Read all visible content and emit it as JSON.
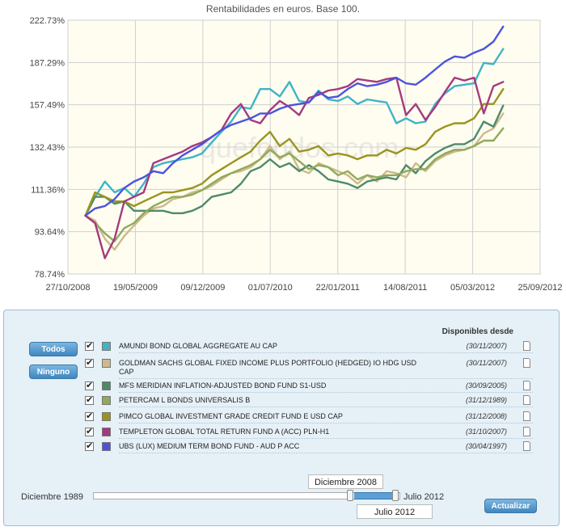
{
  "chart_data": {
    "type": "line",
    "title": "Rentabilidades en euros. Base 100.",
    "watermark": "quefondos.com",
    "y_ticks": [
      "222.73%",
      "187.29%",
      "157.49%",
      "132.43%",
      "111.36%",
      "93.64%",
      "78.74%"
    ],
    "x_ticks": [
      "27/10/2008",
      "19/05/2009",
      "09/12/2009",
      "01/07/2010",
      "22/01/2011",
      "14/08/2011",
      "05/03/2012",
      "25/09/2012"
    ],
    "yscale": "log",
    "ylim": [
      78.74,
      222.73
    ],
    "x_months": [
      0,
      1,
      2,
      3,
      4,
      5,
      6,
      7,
      8,
      9,
      10,
      11,
      12,
      13,
      14,
      15,
      16,
      17,
      18,
      19,
      20,
      21,
      22,
      23,
      24,
      25,
      26,
      27,
      28,
      29,
      30,
      31,
      32,
      33,
      34,
      35,
      36,
      37,
      38,
      39,
      40,
      41,
      42,
      43
    ],
    "xlim_months": [
      -1.8,
      46.8
    ],
    "series": [
      {
        "name": "AMUNDI BOND GLOBAL AGGREGATE AU CAP",
        "color": "#3fb3c7",
        "values": [
          100,
          108,
          115,
          110,
          112,
          108,
          114,
          122,
          124,
          125,
          126,
          127,
          129,
          135,
          141,
          147,
          156,
          155,
          168,
          168,
          163,
          173,
          160,
          159,
          167,
          161,
          160,
          163,
          158,
          161,
          160,
          159,
          146,
          149,
          146,
          147,
          158,
          165,
          170,
          171,
          172,
          187,
          186,
          198
        ]
      },
      {
        "name": "GOLDMAN SACHS GLOBAL FIXED INCOME PLUS PORTFOLIO (HEDGED) IO HDG USD CAP",
        "color": "#cdb98d",
        "values": [
          100,
          98,
          91,
          87,
          92,
          96,
          100,
          103,
          104,
          107,
          108,
          110,
          111,
          113,
          116,
          119,
          120,
          122,
          126,
          133,
          126,
          130,
          121,
          119,
          124,
          122,
          120,
          118,
          114,
          118,
          115,
          120,
          119,
          117,
          124,
          120,
          125,
          128,
          130,
          131,
          133,
          140,
          143,
          152
        ]
      },
      {
        "name": "MFS MERIDIAN INFLATION-ADJUSTED BOND FUND S1-USD",
        "color": "#4e8a6a",
        "values": [
          100,
          108,
          108,
          105,
          106,
          102,
          102,
          102,
          102,
          101,
          101,
          102,
          104,
          108,
          109,
          110,
          114,
          120,
          122,
          126,
          122,
          124,
          120,
          123,
          120,
          116,
          115,
          114,
          112,
          115,
          116,
          117,
          116,
          123,
          119,
          125,
          129,
          132,
          134,
          134,
          137,
          147,
          144,
          157
        ]
      },
      {
        "name": "PETERCAM L BONDS UNIVERSALIS B",
        "color": "#8faa5a",
        "values": [
          100,
          97,
          93,
          90,
          95,
          97,
          101,
          104,
          106,
          108,
          108,
          109,
          111,
          114,
          117,
          119,
          121,
          123,
          126,
          131,
          127,
          129,
          125,
          121,
          123,
          122,
          118,
          120,
          116,
          118,
          117,
          118,
          118,
          120,
          121,
          121,
          126,
          129,
          131,
          131,
          133,
          136,
          136,
          143
        ]
      },
      {
        "name": "PIMCO GLOBAL INVESTMENT GRADE CREDIT FUND E USD CAP",
        "color": "#9a9420",
        "values": [
          100,
          110,
          108,
          106,
          106,
          104,
          106,
          108,
          110,
          110,
          111,
          112,
          114,
          118,
          121,
          124,
          127,
          130,
          136,
          141,
          133,
          137,
          130,
          131,
          133,
          128,
          129,
          128,
          126,
          128,
          128,
          131,
          129,
          132,
          131,
          134,
          141,
          144,
          146,
          146,
          149,
          158,
          158,
          168
        ]
      },
      {
        "name": "TEMPLETON GLOBAL TOTAL RETURN FUND A (ACC) PLN-H1",
        "color": "#a33a7f",
        "values": [
          100,
          97,
          84,
          91,
          106,
          108,
          110,
          124,
          126,
          128,
          130,
          133,
          135,
          138,
          142,
          152,
          158,
          148,
          146,
          154,
          160,
          156,
          151,
          162,
          164,
          167,
          168,
          170,
          175,
          174,
          173,
          175,
          176,
          151,
          158,
          148,
          156,
          166,
          176,
          174,
          176,
          152,
          170,
          173
        ]
      },
      {
        "name": "UBS (LUX) MEDIUM TERM BOND FUND - AUD P ACC",
        "color": "#4b53de",
        "values": [
          100,
          103,
          104,
          107,
          112,
          115,
          117,
          120,
          119,
          124,
          128,
          131,
          134,
          138,
          142,
          145,
          147,
          149,
          152,
          152,
          155,
          157,
          158,
          159,
          166,
          162,
          163,
          168,
          172,
          170,
          171,
          173,
          176,
          172,
          171,
          176,
          182,
          188,
          192,
          191,
          195,
          198,
          204,
          217
        ]
      }
    ]
  },
  "panel": {
    "todos_label": "Todos",
    "ninguno_label": "Ninguno",
    "available_header": "Disponibles desde",
    "check_mark": "✔",
    "funds": [
      {
        "name": "AMUNDI BOND GLOBAL AGGREGATE AU CAP",
        "date": "(30/11/2007)",
        "color": "#3fb3c7"
      },
      {
        "name": "GOLDMAN SACHS GLOBAL FIXED INCOME PLUS PORTFOLIO (HEDGED) IO HDG USD CAP",
        "date": "(30/11/2007)",
        "color": "#cdb98d"
      },
      {
        "name": "MFS MERIDIAN INFLATION-ADJUSTED BOND FUND S1-USD",
        "date": "(30/09/2005)",
        "color": "#4e8a6a"
      },
      {
        "name": "PETERCAM L BONDS UNIVERSALIS B",
        "date": "(31/12/1989)",
        "color": "#8faa5a"
      },
      {
        "name": "PIMCO GLOBAL INVESTMENT GRADE CREDIT FUND E USD CAP",
        "date": "(31/12/2008)",
        "color": "#9a9420"
      },
      {
        "name": "TEMPLETON GLOBAL TOTAL RETURN FUND A (ACC) PLN-H1",
        "date": "(31/10/2007)",
        "color": "#a33a7f"
      },
      {
        "name": "UBS (LUX) MEDIUM TERM BOND FUND - AUD P ACC",
        "date": "(30/04/1997)",
        "color": "#4b53de"
      }
    ],
    "slider": {
      "min_label": "Diciembre 1989",
      "max_label": "Julio 2012",
      "start_value": "Diciembre 2008",
      "end_value": "Julio 2012"
    },
    "actualizar_label": "Actualizar"
  }
}
